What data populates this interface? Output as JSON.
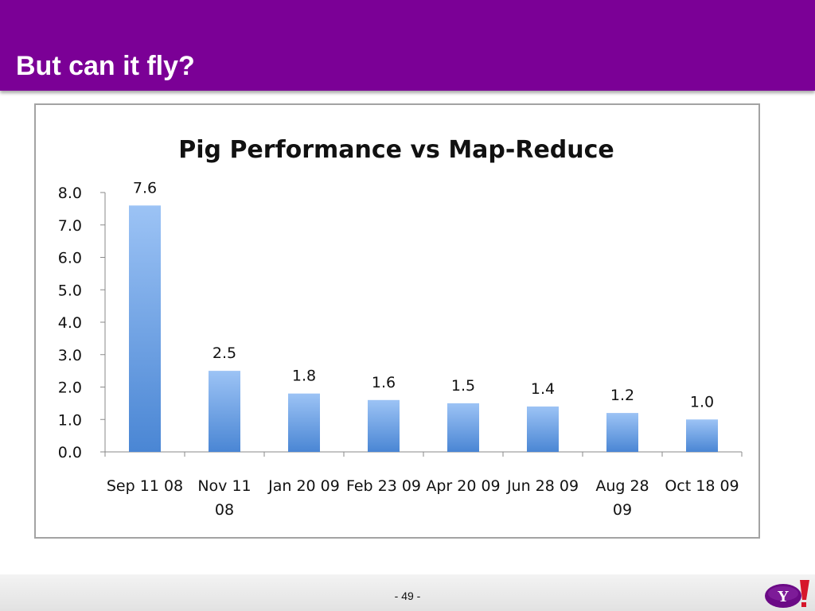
{
  "slide": {
    "title": "But can it fly?",
    "page_number": "- 49 -",
    "logo_text": "Y!"
  },
  "colors": {
    "header_bg": "#7b0096",
    "bar_top": "#9cc3f5",
    "bar_bottom": "#4a86d4"
  },
  "chart_data": {
    "type": "bar",
    "title": "Pig Performance vs Map-Reduce",
    "xlabel": "",
    "ylabel": "",
    "ylim": [
      0,
      8
    ],
    "yticks": [
      "0.0",
      "1.0",
      "2.0",
      "3.0",
      "4.0",
      "5.0",
      "6.0",
      "7.0",
      "8.0"
    ],
    "grid": false,
    "legend": "none",
    "categories": [
      [
        "Sep 11 08"
      ],
      [
        "Nov 11",
        "08"
      ],
      [
        "Jan 20 09"
      ],
      [
        "Feb 23 09"
      ],
      [
        "Apr 20 09"
      ],
      [
        "Jun 28 09"
      ],
      [
        "Aug 28",
        "09"
      ],
      [
        "Oct 18 09"
      ]
    ],
    "values": [
      7.6,
      2.5,
      1.8,
      1.6,
      1.5,
      1.4,
      1.2,
      1.0
    ],
    "data_labels": [
      "7.6",
      "2.5",
      "1.8",
      "1.6",
      "1.5",
      "1.4",
      "1.2",
      "1.0"
    ]
  }
}
